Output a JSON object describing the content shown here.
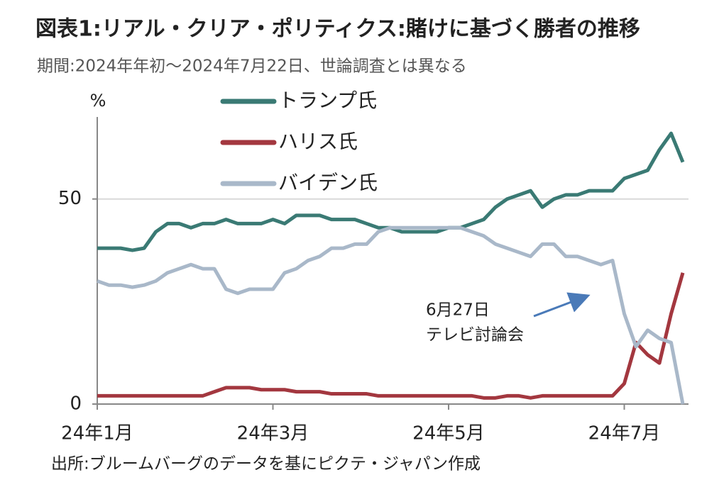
{
  "chart_data": {
    "type": "line",
    "title": "図表1:リアル・クリア・ポリティクス:賭けに基づく勝者の推移",
    "subtitle": "期間:2024年年初～2024年7月22日、世論調査とは異なる",
    "y_unit": "%",
    "source": "出所:ブルームバーグのデータを基にピクテ・ジャパン作成",
    "annotation": [
      "6月27日",
      "テレビ討論会"
    ],
    "categories": [
      "24年1月",
      null,
      null,
      null,
      null,
      null,
      null,
      null,
      null,
      null,
      null,
      null,
      null,
      null,
      null,
      "24年3月",
      null,
      null,
      null,
      null,
      null,
      null,
      null,
      null,
      null,
      null,
      null,
      null,
      null,
      null,
      "24年5月",
      null,
      null,
      null,
      null,
      null,
      null,
      null,
      null,
      null,
      null,
      null,
      null,
      null,
      null,
      "24年7月",
      null,
      null,
      null,
      null,
      null
    ],
    "ylim": [
      0,
      70
    ],
    "yticks": [
      0,
      50
    ],
    "grid": true,
    "series": [
      {
        "name": "トランプ氏",
        "color": "#3a7a74",
        "values": [
          38,
          38,
          38,
          37.5,
          38,
          42,
          44,
          44,
          43,
          44,
          44,
          45,
          44,
          44,
          44,
          45,
          44,
          46,
          46,
          46,
          45,
          45,
          45,
          44,
          43,
          43,
          42,
          42,
          42,
          42,
          43,
          43,
          44,
          45,
          48,
          50,
          51,
          52,
          48,
          50,
          51,
          51,
          52,
          52,
          52,
          55,
          56,
          57,
          62,
          66,
          59
        ]
      },
      {
        "name": "ハリス氏",
        "color": "#a3373f",
        "values": [
          2,
          2,
          2,
          2,
          2,
          2,
          2,
          2,
          2,
          2,
          3,
          4,
          4,
          4,
          3.5,
          3.5,
          3.5,
          3,
          3,
          3,
          2.5,
          2.5,
          2.5,
          2.5,
          2,
          2,
          2,
          2,
          2,
          2,
          2,
          2,
          2,
          1.5,
          1.5,
          2,
          2,
          1.5,
          2,
          2,
          2,
          2,
          2,
          2,
          2,
          5,
          15,
          12,
          10,
          22,
          32
        ]
      },
      {
        "name": "バイデン氏",
        "color": "#a9b8c9",
        "values": [
          30,
          29,
          29,
          28.5,
          29,
          30,
          32,
          33,
          34,
          33,
          33,
          28,
          27,
          28,
          28,
          28,
          32,
          33,
          35,
          36,
          38,
          38,
          39,
          39,
          42,
          43,
          43,
          43,
          43,
          43,
          43,
          43,
          42,
          41,
          39,
          38,
          37,
          36,
          39,
          39,
          36,
          36,
          35,
          34,
          35,
          22,
          14,
          18,
          16,
          15,
          0
        ]
      }
    ]
  }
}
